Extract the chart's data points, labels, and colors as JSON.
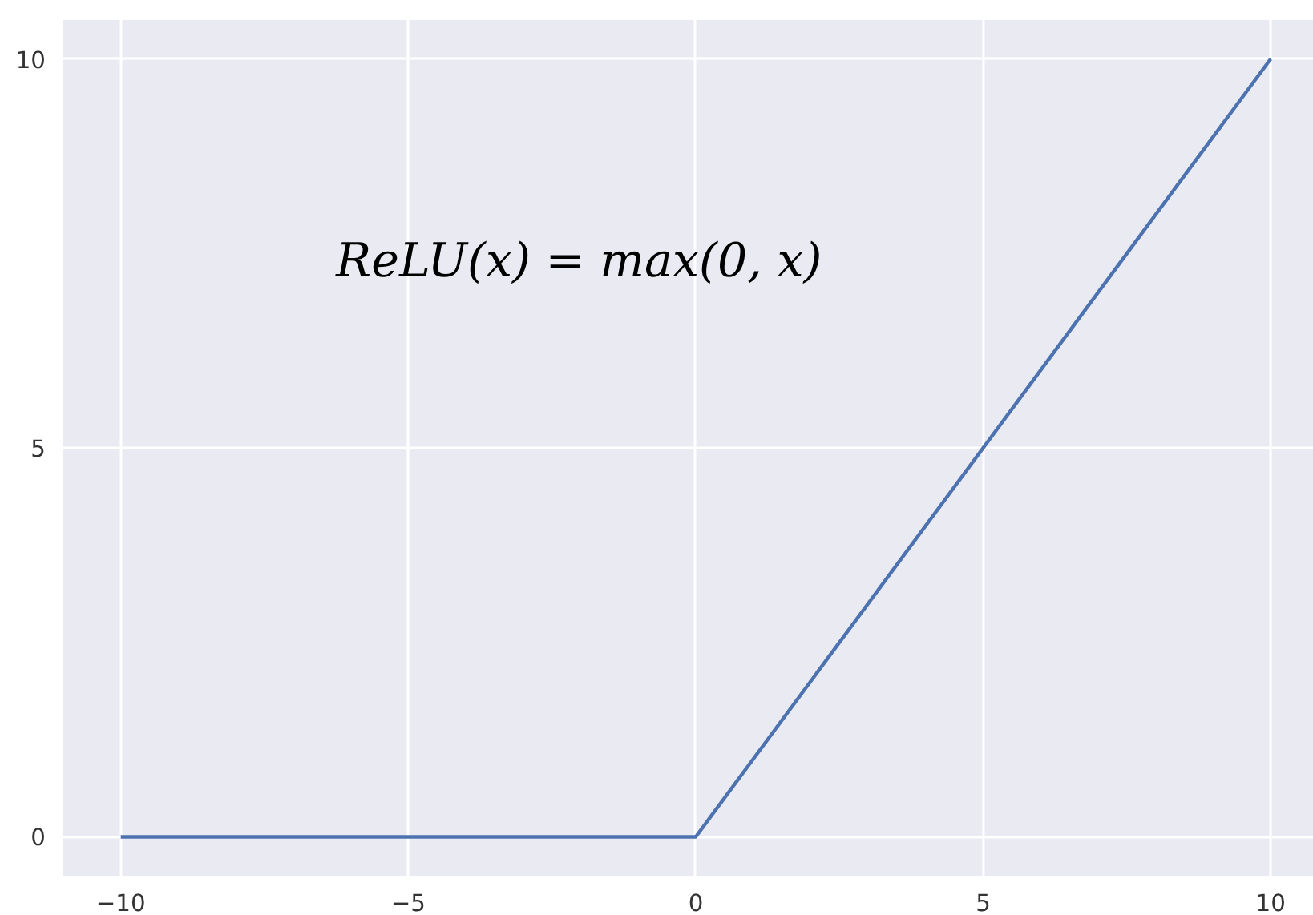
{
  "chart_data": {
    "type": "line",
    "x": [
      -10,
      0,
      10
    ],
    "series": [
      {
        "color": "#4c72b0",
        "values": [
          0,
          0,
          10
        ]
      }
    ],
    "xlim": [
      -11,
      10.75
    ],
    "ylim": [
      -0.5,
      10.5
    ],
    "xticks": [
      {
        "value": -10,
        "label": "−10"
      },
      {
        "value": -5,
        "label": "−5"
      },
      0,
      5,
      10
    ],
    "yticks": [
      0,
      5,
      10
    ],
    "grid": true,
    "marker": "none",
    "line_style": "solid",
    "annotations": [
      "ReLU(x) = max(0, x)"
    ]
  }
}
